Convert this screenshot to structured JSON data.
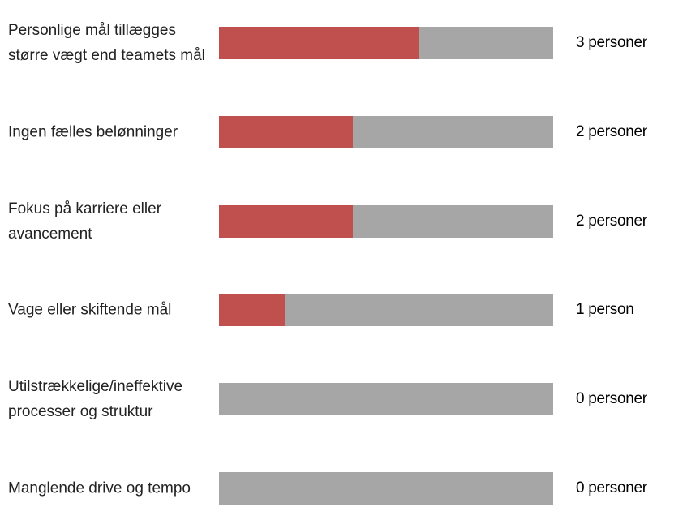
{
  "chart_data": {
    "type": "bar",
    "orientation": "horizontal",
    "categories": [
      "Personlige mål tillægges større vægt end teamets mål",
      "Ingen fælles belønninger",
      "Fokus på karriere eller avancement",
      "Vage eller skiftende mål",
      "Utilstrækkelige/ineffektive processer og struktur",
      "Manglende drive og tempo"
    ],
    "values": [
      3,
      2,
      2,
      1,
      0,
      0
    ],
    "value_labels": [
      "3 personer",
      "2 personer",
      "2 personer",
      "1 person",
      "0 personer",
      "0 personer"
    ],
    "xlim": [
      0,
      5
    ],
    "color": "#c0504d",
    "track_color": "#a6a6a6"
  }
}
